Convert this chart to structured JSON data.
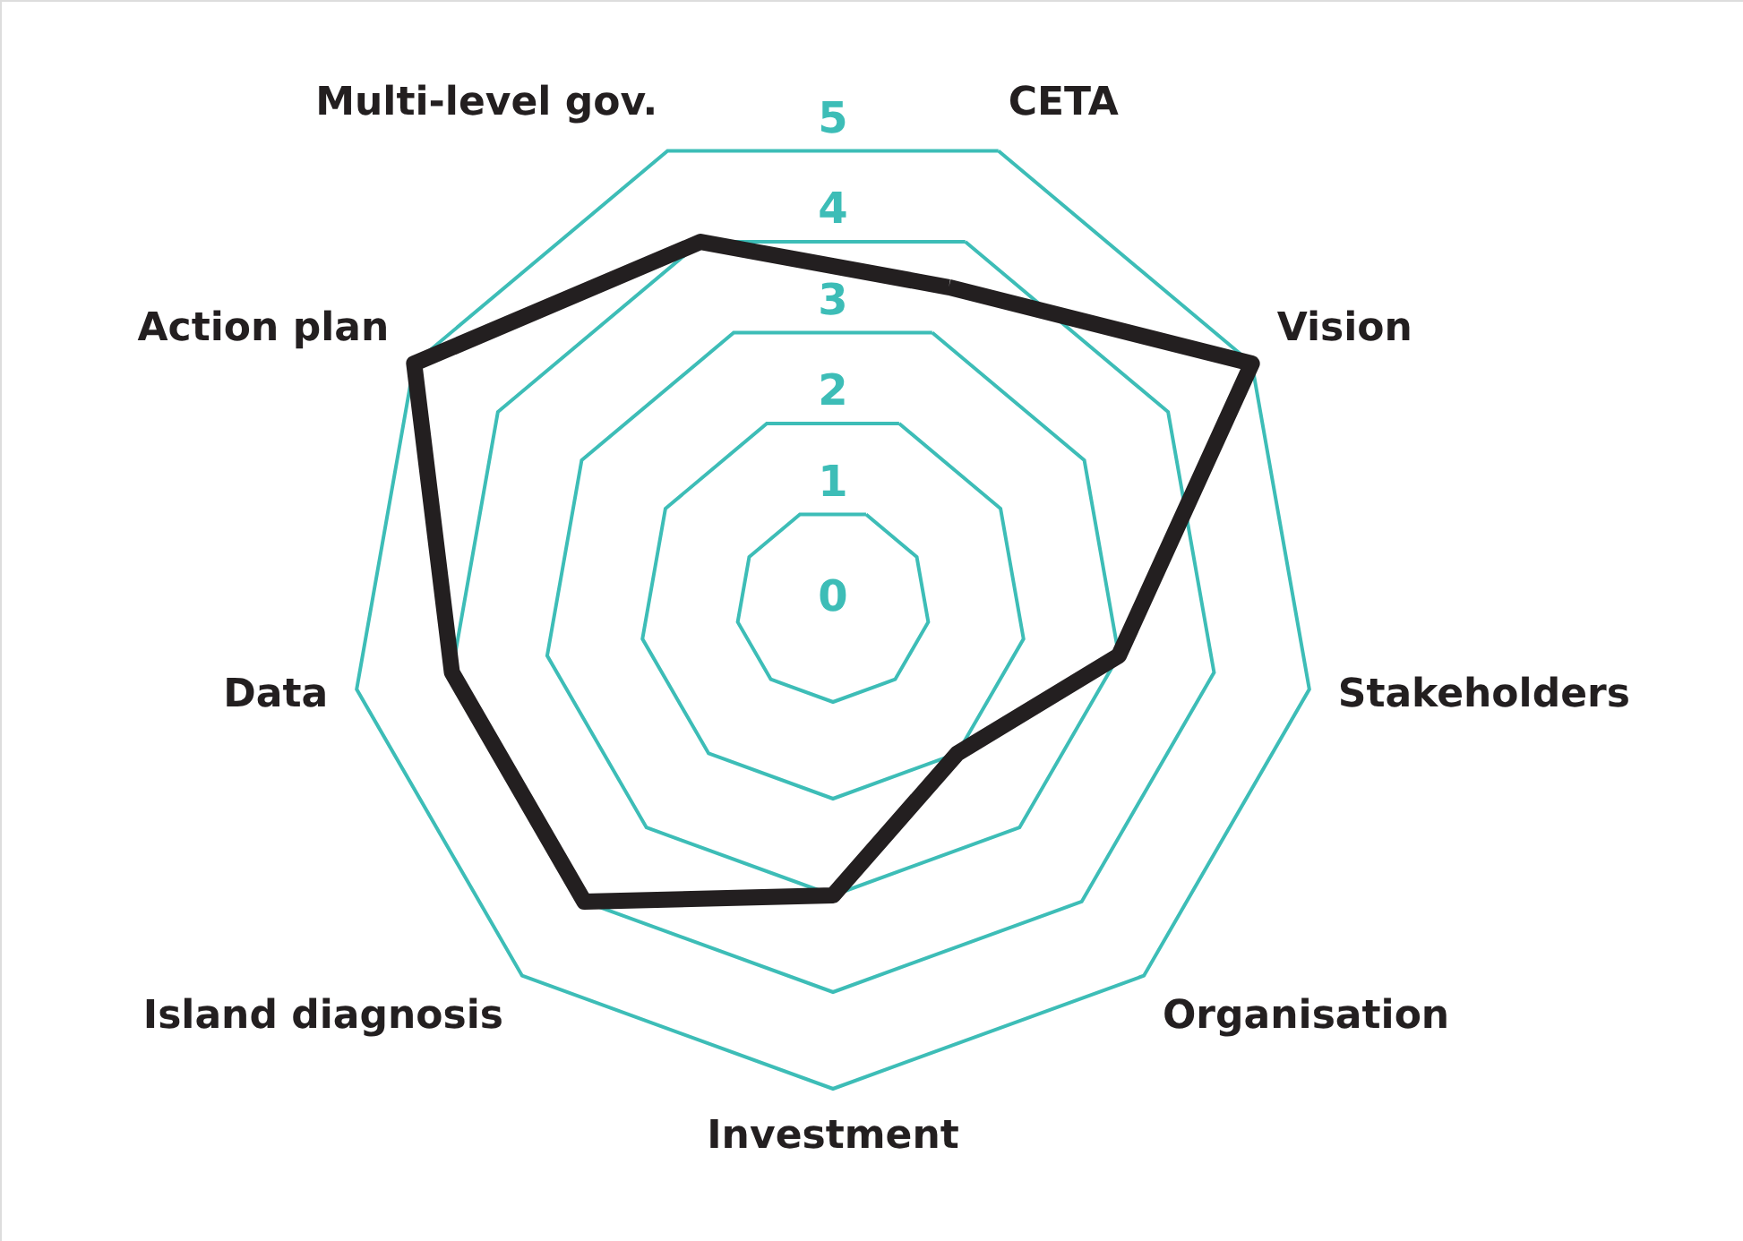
{
  "chart_data": {
    "type": "radar",
    "categories": [
      "CETA",
      "Vision",
      "Stakeholders",
      "Organisation",
      "Investment",
      "Island diagnosis",
      "Data",
      "Action plan",
      "Multi-level gov."
    ],
    "series": [
      {
        "color": "#231f20",
        "values": [
          3.5,
          5,
          3,
          2,
          3,
          4,
          4,
          5,
          4
        ]
      }
    ],
    "ylim": [
      0,
      5
    ],
    "yticks": [
      0,
      1,
      2,
      3,
      4,
      5
    ],
    "grid": true
  }
}
